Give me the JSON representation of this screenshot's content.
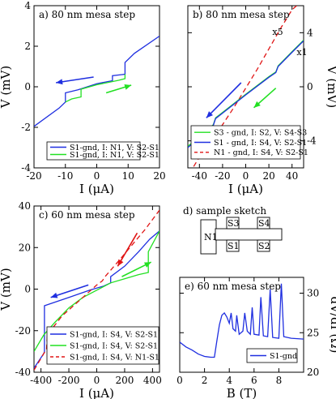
{
  "colors": {
    "blue": "#1f2fe0",
    "green": "#22e022",
    "red": "#e01515",
    "frame": "#000000"
  },
  "charts": [
    {
      "id": "a",
      "type": "line",
      "title": "a)  80 nm mesa step",
      "xlabel": "I (μA)",
      "ylabel": "V (mV)",
      "ylabel_side": "left",
      "xlim": [
        -20,
        20
      ],
      "ylim": [
        -4,
        4
      ],
      "xticks": [
        "-20",
        "-10",
        "0",
        "10",
        "20"
      ],
      "yticks": [
        "-4",
        "-2",
        "0",
        "2",
        "4"
      ],
      "legend": {
        "placement": "bottom-right",
        "entries": [
          {
            "label": "S1-gnd, I: N1, V: S2-S1",
            "color": "blue",
            "dash": ""
          },
          {
            "label": "S1-gnd, I: N1, V: S2-S1",
            "color": "green",
            "dash": ""
          }
        ]
      },
      "series": [
        {
          "color": "blue",
          "dash": "",
          "points": [
            [
              -20,
              -1.95
            ],
            [
              -12,
              -1.05
            ],
            [
              -10,
              -0.75
            ],
            [
              -10,
              -0.3
            ],
            [
              -6,
              -0.15
            ],
            [
              0,
              0.15
            ],
            [
              5,
              0.3
            ],
            [
              5,
              0.55
            ],
            [
              8,
              0.6
            ],
            [
              9,
              0.62
            ],
            [
              9,
              1.2
            ],
            [
              12,
              1.65
            ],
            [
              20,
              2.5
            ]
          ]
        },
        {
          "color": "green",
          "dash": "",
          "points": [
            [
              -10,
              -0.75
            ],
            [
              -8,
              -0.6
            ],
            [
              -5,
              -0.5
            ],
            [
              -5,
              -0.12
            ],
            [
              0,
              0.1
            ],
            [
              7,
              0.32
            ],
            [
              9,
              0.4
            ],
            [
              9,
              0.62
            ]
          ]
        }
      ],
      "arrows": [
        {
          "color": "blue",
          "from": [
            -1,
            0.48
          ],
          "to": [
            -13,
            0.2
          ]
        },
        {
          "color": "green",
          "from": [
            3,
            -0.3
          ],
          "to": [
            11,
            0.08
          ]
        }
      ],
      "annotations": []
    },
    {
      "id": "b",
      "type": "line",
      "title": "b)  80 nm mesa step",
      "xlabel": "I (μA)",
      "ylabel": "V (mV)",
      "ylabel_side": "right",
      "xlim": [
        -50,
        50
      ],
      "ylim": [
        -6,
        6
      ],
      "xticks": [
        "-40",
        "-20",
        "0",
        "20",
        "40"
      ],
      "yticks": [
        "-4",
        "0",
        "4"
      ],
      "legend": {
        "placement": "bottom-right",
        "entries": [
          {
            "label": "S3 - gnd, I: S2, V: S4-S3",
            "color": "green",
            "dash": ""
          },
          {
            "label": "S1 - gnd, I: S4, V: S2-S1",
            "color": "blue",
            "dash": ""
          },
          {
            "label": "N1 - gnd, I: S4, V: S2-S1",
            "color": "red",
            "dash": "6,4"
          }
        ]
      },
      "series": [
        {
          "color": "red",
          "dash": "6,4",
          "points": [
            [
              -45,
              -5.9
            ],
            [
              -40,
              -5.2
            ],
            [
              -30,
              -4
            ],
            [
              -20,
              -2.8
            ],
            [
              -10,
              -1.5
            ],
            [
              0,
              -0.1
            ],
            [
              10,
              1.3
            ],
            [
              20,
              2.8
            ],
            [
              30,
              4.3
            ],
            [
              40,
              5.7
            ],
            [
              44,
              6
            ]
          ]
        },
        {
          "color": "green",
          "dash": "",
          "points": [
            [
              -50,
              -4.4
            ],
            [
              -40,
              -3.7
            ],
            [
              -30,
              -2.95
            ],
            [
              -28,
              -2.8
            ],
            [
              -26,
              -2.3
            ],
            [
              -20,
              -1.9
            ],
            [
              0,
              -0.55
            ],
            [
              20,
              0.75
            ],
            [
              26,
              1.1
            ],
            [
              28,
              1.55
            ],
            [
              40,
              2.6
            ],
            [
              50,
              3.45
            ]
          ]
        },
        {
          "color": "blue",
          "dash": "",
          "points": [
            [
              -50,
              -4.5
            ],
            [
              -40,
              -3.75
            ],
            [
              -30,
              -3
            ],
            [
              -28,
              -2.85
            ],
            [
              -26,
              -2.35
            ],
            [
              -20,
              -1.95
            ],
            [
              0,
              -0.6
            ],
            [
              20,
              0.7
            ],
            [
              26,
              1.05
            ],
            [
              28,
              1.5
            ],
            [
              40,
              2.55
            ],
            [
              50,
              3.4
            ]
          ]
        }
      ],
      "arrows": [
        {
          "color": "blue",
          "from": [
            -4,
            0.3
          ],
          "to": [
            -34,
            -2.3
          ]
        },
        {
          "color": "green",
          "from": [
            26,
            -0.1
          ],
          "to": [
            7,
            -1.55
          ]
        }
      ],
      "annotations": [
        {
          "text": "x5",
          "at": [
            23,
            3.85
          ]
        },
        {
          "text": "x1",
          "at": [
            44,
            2.35
          ]
        }
      ]
    },
    {
      "id": "c",
      "type": "line",
      "title": "c)  60 nm mesa step",
      "xlabel": "I (μA)",
      "ylabel": "V (mV)",
      "ylabel_side": "left",
      "xlim": [
        -450,
        450
      ],
      "ylim": [
        -40,
        40
      ],
      "xticks": [
        "-400",
        "-200",
        "0",
        "200",
        "400"
      ],
      "yticks": [
        "-40",
        "-20",
        "0",
        "20",
        "40"
      ],
      "legend": {
        "placement": "bottom-right",
        "entries": [
          {
            "label": "S1-gnd, I: S4, V: S2-S1",
            "color": "blue",
            "dash": ""
          },
          {
            "label": "S1-gnd, I: S4, V: S2-S1",
            "color": "green",
            "dash": ""
          },
          {
            "label": "S1-gnd, I: S4, V: N1-S1",
            "color": "red",
            "dash": "6,4"
          }
        ]
      },
      "series": [
        {
          "color": "blue",
          "dash": "",
          "points": [
            [
              -450,
              -38
            ],
            [
              -380,
              -31
            ],
            [
              -375,
              -30
            ],
            [
              -375,
              -8
            ],
            [
              -200,
              -4
            ],
            [
              -50,
              -0.5
            ],
            [
              50,
              1.5
            ],
            [
              100,
              3
            ],
            [
              100,
              6
            ],
            [
              200,
              11
            ],
            [
              300,
              18
            ],
            [
              380,
              24
            ],
            [
              450,
              28
            ]
          ]
        },
        {
          "color": "green",
          "dash": "",
          "points": [
            [
              -450,
              -30
            ],
            [
              -380,
              -22
            ],
            [
              -300,
              -16
            ],
            [
              -200,
              -9
            ],
            [
              -100,
              -4
            ],
            [
              0,
              -0.5
            ],
            [
              100,
              3
            ],
            [
              200,
              5
            ],
            [
              300,
              7
            ],
            [
              370,
              8
            ],
            [
              370,
              18
            ],
            [
              450,
              28
            ]
          ]
        },
        {
          "color": "red",
          "dash": "6,4",
          "points": [
            [
              -450,
              -39
            ],
            [
              -380,
              -31
            ],
            [
              -360,
              -29
            ],
            [
              -355,
              -22
            ],
            [
              -250,
              -13
            ],
            [
              -100,
              -4
            ],
            [
              0,
              2
            ],
            [
              40,
              4
            ],
            [
              60,
              6
            ],
            [
              150,
              13
            ],
            [
              250,
              21
            ],
            [
              350,
              29
            ],
            [
              450,
              38
            ]
          ]
        }
      ],
      "arrows": [
        {
          "color": "red",
          "from": [
            290,
            27
          ],
          "to": [
            150,
            11
          ]
        },
        {
          "color": "blue",
          "from": [
            -60,
            2
          ],
          "to": [
            -330,
            -4
          ]
        },
        {
          "color": "green",
          "from": [
            180,
            6
          ],
          "to": [
            390,
            13
          ]
        }
      ],
      "annotations": []
    },
    {
      "id": "e",
      "type": "line",
      "title": "e)  60 nm mesa step",
      "xlabel": "B (T)",
      "ylabel": "dV/dI (Ω)",
      "ylabel_side": "right",
      "xlim": [
        0,
        10
      ],
      "ylim": [
        20,
        32
      ],
      "xticks": [
        "0",
        "2",
        "4",
        "6",
        "8"
      ],
      "yticks": [
        "20",
        "25",
        "30"
      ],
      "legend": {
        "placement": "bottom-right",
        "entries": [
          {
            "label": "S1-gnd",
            "color": "blue",
            "dash": ""
          }
        ]
      },
      "series": [
        {
          "color": "blue",
          "dash": "",
          "points": [
            [
              0,
              23.8
            ],
            [
              0.5,
              23.2
            ],
            [
              1,
              22.8
            ],
            [
              1.5,
              22.3
            ],
            [
              2,
              22.0
            ],
            [
              2.5,
              21.9
            ],
            [
              2.8,
              21.9
            ],
            [
              3.0,
              24
            ],
            [
              3.2,
              26
            ],
            [
              3.4,
              27.2
            ],
            [
              3.6,
              27.5
            ],
            [
              3.8,
              27
            ],
            [
              4.0,
              26.2
            ],
            [
              4.15,
              27.5
            ],
            [
              4.3,
              25.5
            ],
            [
              4.5,
              25.2
            ],
            [
              4.6,
              27.2
            ],
            [
              4.8,
              24.8
            ],
            [
              5.1,
              25.2
            ],
            [
              5.25,
              27.5
            ],
            [
              5.45,
              25.2
            ],
            [
              5.7,
              24.8
            ],
            [
              5.85,
              28.2
            ],
            [
              6.0,
              24.8
            ],
            [
              6.4,
              24.7
            ],
            [
              6.55,
              29.5
            ],
            [
              6.75,
              24.6
            ],
            [
              7.1,
              24.5
            ],
            [
              7.3,
              30.5
            ],
            [
              7.5,
              24.4
            ],
            [
              8.0,
              24.3
            ],
            [
              8.2,
              31.2
            ],
            [
              8.4,
              24.5
            ],
            [
              9,
              24.3
            ],
            [
              10,
              24.2
            ]
          ]
        }
      ],
      "arrows": [],
      "annotations": []
    }
  ],
  "sketch": {
    "title": "d)  sample sketch",
    "labels": [
      "N1",
      "S3",
      "S4",
      "S1",
      "S2"
    ]
  }
}
